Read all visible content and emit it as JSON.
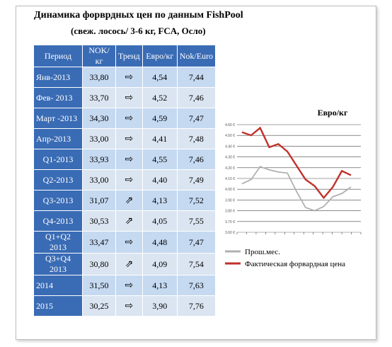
{
  "header": {
    "title": "Динамика форврдных цен по данным FishPool",
    "subtitle": "(свеж. лосось/  3-6 кг, FCA, Осло)"
  },
  "table": {
    "header": [
      "Период",
      "NOK/кг",
      "Тренд",
      "Евро/кг",
      "Nok/Euro"
    ],
    "rows": [
      [
        "Янв-2013",
        "33,80",
        "⇨",
        "4,54",
        "7,44"
      ],
      [
        "Фев- 2013",
        "33,70",
        "⇨",
        "4,52",
        "7,46"
      ],
      [
        "Март -2013",
        "34,30",
        "⇨",
        "4,59",
        "7,47"
      ],
      [
        "Апр-2013",
        "33,00",
        "⇨",
        "4,41",
        "7,48"
      ],
      [
        "Q1-2013",
        "33,93",
        "⇨",
        "4,55",
        "7,46"
      ],
      [
        "Q2-2013",
        "33,00",
        "⇨",
        "4,40",
        "7,49"
      ],
      [
        "Q3-2013",
        "31,07",
        "⇗",
        "4,13",
        "7,52"
      ],
      [
        "Q4-2013",
        "30,53",
        "⇗",
        "4,05",
        "7,55"
      ],
      [
        "Q1+Q2 2013",
        "33,47",
        "⇨",
        "4,48",
        "7,47"
      ],
      [
        "Q3+Q4 2013",
        "30,80",
        "⇗",
        "4,09",
        "7,54"
      ],
      [
        "2014",
        "31,50",
        "⇨",
        "4,13",
        "7,63"
      ],
      [
        "2015",
        "30,25",
        "⇨",
        "3,90",
        "7,76"
      ]
    ]
  },
  "chart_data": {
    "type": "line",
    "title": "Евро/кг",
    "categories": [
      null,
      null,
      null,
      null,
      null,
      null,
      null,
      null,
      null,
      null,
      null,
      null,
      null
    ],
    "series": [
      {
        "name": "Прош.мес.",
        "color": "#b0b0b0",
        "values": [
          4.05,
          4.09,
          4.21,
          4.18,
          4.16,
          4.15,
          3.98,
          3.83,
          3.8,
          3.84,
          3.93,
          3.96,
          4.02
        ]
      },
      {
        "name": "Фактическая форвардная цена",
        "color": "#c0312b",
        "values": [
          4.53,
          4.5,
          4.57,
          4.39,
          4.42,
          4.35,
          4.22,
          4.09,
          4.03,
          3.92,
          4.02,
          4.17,
          4.13
        ]
      }
    ],
    "ylim": [
      3.6,
      4.6
    ],
    "yticks": [
      {
        "value": 3.6,
        "label": "3.60 €"
      },
      {
        "value": 3.7,
        "label": "3.70 €"
      },
      {
        "value": 3.8,
        "label": "3.80 €"
      },
      {
        "value": 3.9,
        "label": "3.90 €"
      },
      {
        "value": 4.0,
        "label": "4.00 €"
      },
      {
        "value": 4.1,
        "label": "4.10 €"
      },
      {
        "value": 4.2,
        "label": "4.20 €"
      },
      {
        "value": 4.3,
        "label": "4.30 €"
      },
      {
        "value": 4.4,
        "label": "4.40 €"
      },
      {
        "value": 4.5,
        "label": "4.50 €"
      },
      {
        "value": 4.6,
        "label": "4.60 €"
      }
    ],
    "grid": true
  }
}
